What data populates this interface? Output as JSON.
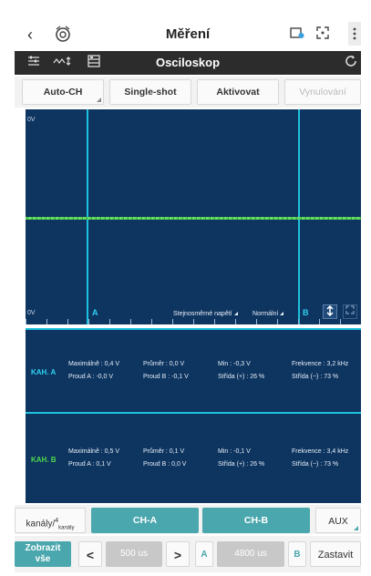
{
  "appbar": {
    "title": "Měření",
    "back_glyph": "‹",
    "icons": [
      "back-icon",
      "car-logo-icon",
      "screenshot-icon",
      "fullscreen-icon",
      "more-icon"
    ]
  },
  "toolbar": {
    "title": "Osciloskop",
    "icons": [
      "filter-icon",
      "measure-icon",
      "storage-icon",
      "refresh-icon"
    ]
  },
  "modes": {
    "auto_ch": "Auto-CH",
    "single_shot": "Single-shot",
    "aktivovat": "Aktivovat",
    "vynulovani": "Vynulování"
  },
  "scope": {
    "top_voltage": "0V",
    "bottom_voltage": "0V",
    "cursor_a": "A",
    "cursor_b": "B",
    "coupling": "Stejnosměrné napětí",
    "trigger_mode": "Normální"
  },
  "channel_a": {
    "name": "KAH. A",
    "max": "Maximálně : 0,4 V",
    "avg": "Průměr : 0,0 V",
    "min": "Min : -0,3 V",
    "freq": "Frekvence : 3,2 kHz",
    "current_a": "Proud A : -0,0 V",
    "current_b": "Proud B : -0,1 V",
    "duty_pos": "Střída (+) : 26 %",
    "duty_neg": "Střída (−) : 73 %"
  },
  "channel_b": {
    "name": "KAH. B",
    "max": "Maximálně : 0,5 V",
    "avg": "Průměr : 0,1 V",
    "min": "Min : -0,1 V",
    "freq": "Frekvence : 3,4 kHz",
    "current_a": "Proud A : 0,1 V",
    "current_b": "Proud B : 0,0 V",
    "duty_pos": "Střída (+) : 26 %",
    "duty_neg": "Střída (−) : 73 %"
  },
  "channels": {
    "count_label": "kanály/",
    "count_sup": "4",
    "count_sub": "kanály",
    "ch_a": "CH-A",
    "ch_b": "CH-B",
    "aux": "AUX"
  },
  "timebase": {
    "show_line1": "Zobrazit",
    "show_line2": "vše",
    "prev": "<",
    "value": "500 us",
    "next": ">",
    "a_label": "A",
    "a_value": "4800 us",
    "b_label": "B",
    "stop": "Zastavit"
  },
  "colors": {
    "scope_bg": "#0e3560",
    "cursor": "#1fc0dd",
    "signal": "#5bd45b",
    "accent": "#4aa7ad",
    "channel_a_name": "#2fd0f0",
    "channel_b_name": "#4fd64f"
  }
}
